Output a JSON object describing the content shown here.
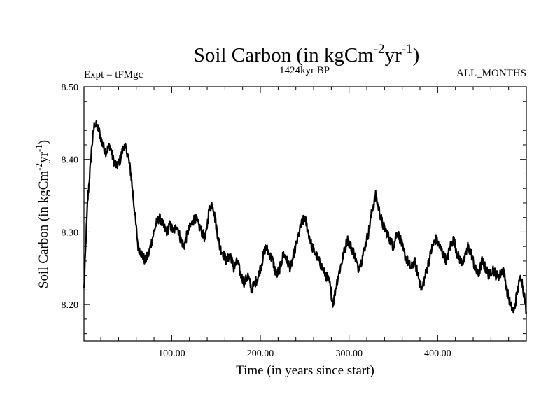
{
  "chart_data": {
    "type": "line",
    "title": "Soil Carbon (in kgCm",
    "title_sup1": "-2",
    "title_mid": "yr",
    "title_sup2": "-1",
    "title_end": ")",
    "subtitle_left": "Expt = tFMgc",
    "subtitle_center": "1424kyr BP",
    "subtitle_right": "ALL_MONTHS",
    "xlabel": "Time (in years since start)",
    "ylabel": {
      "main": "Soil Carbon (in kgCm",
      "sup1": "-2",
      "mid": "yr",
      "sup2": "-1",
      "end": ")"
    },
    "xlim": [
      1,
      500
    ],
    "ylim": [
      8.15,
      8.5
    ],
    "xticks": [
      100,
      200,
      300,
      400
    ],
    "xtick_labels": [
      "100.00",
      "200.00",
      "300.00",
      "400.00"
    ],
    "yticks": [
      8.2,
      8.3,
      8.4,
      8.5
    ],
    "ytick_labels": [
      "8.20",
      "8.30",
      "8.40",
      "8.50"
    ],
    "grid": false,
    "line_color": "#000000",
    "series": [
      {
        "name": "Soil Carbon",
        "x": [
          1,
          5,
          10,
          13,
          18,
          22,
          26,
          30,
          34,
          38,
          42,
          46,
          50,
          54,
          58,
          62,
          66,
          70,
          74,
          78,
          82,
          86,
          90,
          94,
          98,
          102,
          106,
          110,
          114,
          118,
          122,
          126,
          130,
          134,
          138,
          142,
          146,
          150,
          154,
          158,
          162,
          166,
          170,
          174,
          178,
          182,
          186,
          190,
          194,
          198,
          202,
          206,
          210,
          214,
          218,
          222,
          226,
          230,
          234,
          238,
          242,
          246,
          250,
          254,
          258,
          262,
          266,
          270,
          274,
          278,
          282,
          286,
          290,
          294,
          298,
          302,
          306,
          310,
          314,
          318,
          322,
          326,
          330,
          334,
          338,
          342,
          346,
          350,
          354,
          358,
          362,
          366,
          370,
          374,
          378,
          382,
          386,
          390,
          394,
          398,
          402,
          406,
          410,
          414,
          418,
          422,
          426,
          430,
          434,
          438,
          442,
          446,
          450,
          454,
          458,
          462,
          466,
          470,
          474,
          478,
          482,
          486,
          490,
          494,
          498,
          500
        ],
        "y": [
          8.22,
          8.34,
          8.42,
          8.45,
          8.44,
          8.42,
          8.41,
          8.42,
          8.4,
          8.39,
          8.4,
          8.42,
          8.41,
          8.38,
          8.33,
          8.28,
          8.27,
          8.26,
          8.27,
          8.29,
          8.31,
          8.32,
          8.31,
          8.3,
          8.31,
          8.3,
          8.31,
          8.29,
          8.28,
          8.3,
          8.31,
          8.32,
          8.31,
          8.3,
          8.29,
          8.33,
          8.34,
          8.31,
          8.28,
          8.27,
          8.26,
          8.27,
          8.25,
          8.26,
          8.24,
          8.23,
          8.24,
          8.22,
          8.23,
          8.24,
          8.26,
          8.28,
          8.27,
          8.26,
          8.24,
          8.25,
          8.27,
          8.26,
          8.25,
          8.27,
          8.29,
          8.31,
          8.32,
          8.3,
          8.28,
          8.27,
          8.26,
          8.25,
          8.24,
          8.23,
          8.2,
          8.23,
          8.25,
          8.27,
          8.29,
          8.28,
          8.27,
          8.25,
          8.26,
          8.28,
          8.3,
          8.33,
          8.35,
          8.33,
          8.31,
          8.3,
          8.29,
          8.28,
          8.3,
          8.29,
          8.27,
          8.26,
          8.25,
          8.26,
          8.24,
          8.22,
          8.24,
          8.26,
          8.28,
          8.29,
          8.28,
          8.27,
          8.26,
          8.28,
          8.29,
          8.27,
          8.26,
          8.26,
          8.28,
          8.27,
          8.25,
          8.24,
          8.26,
          8.25,
          8.24,
          8.25,
          8.24,
          8.24,
          8.25,
          8.22,
          8.2,
          8.19,
          8.22,
          8.24,
          8.21,
          8.19
        ]
      }
    ]
  }
}
